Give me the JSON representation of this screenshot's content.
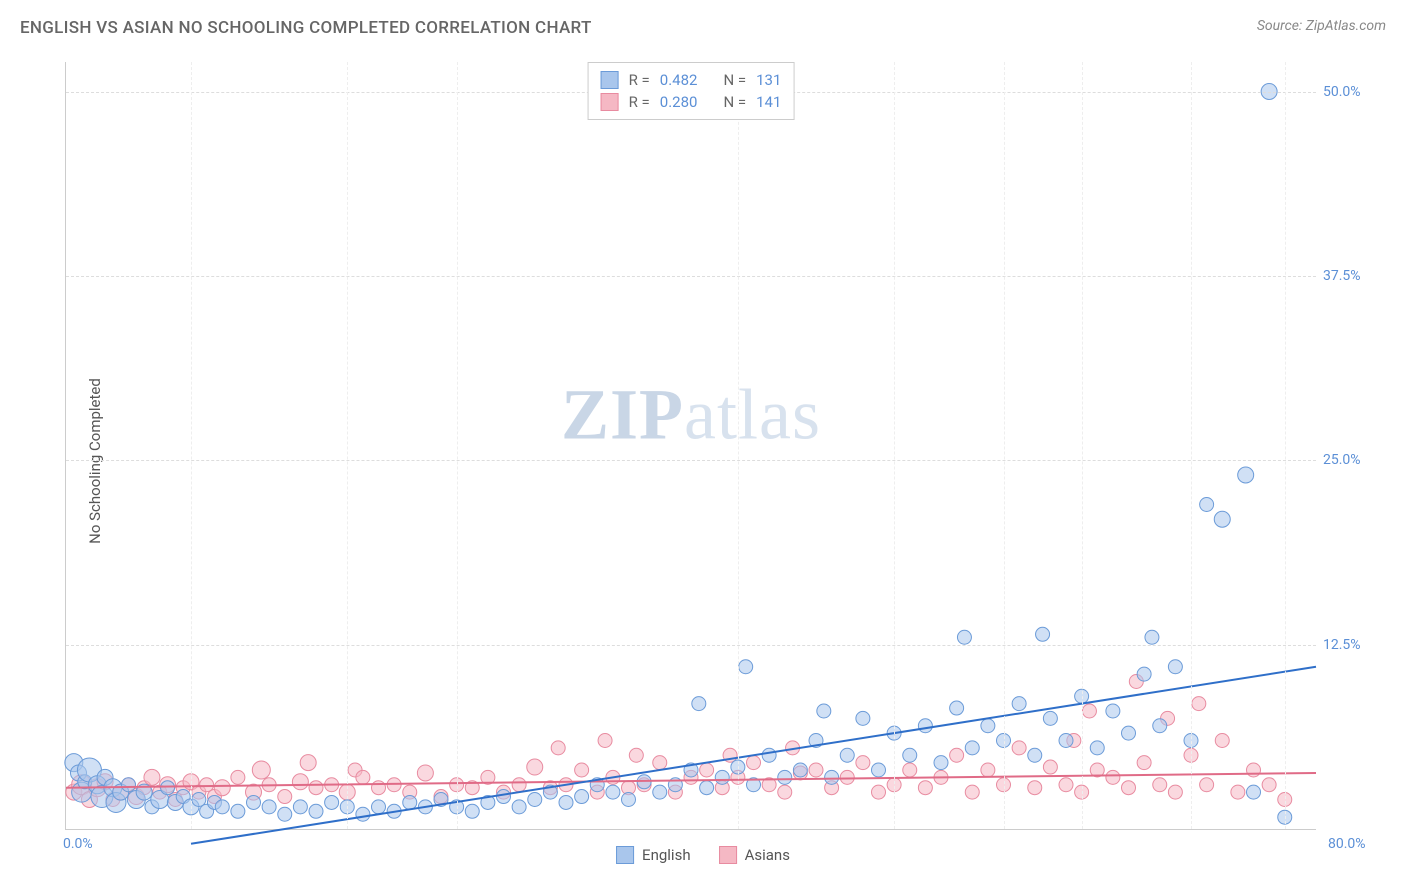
{
  "title": "ENGLISH VS ASIAN NO SCHOOLING COMPLETED CORRELATION CHART",
  "source_prefix": "Source: ",
  "source_link": "ZipAtlas.com",
  "ylabel": "No Schooling Completed",
  "watermark_bold": "ZIP",
  "watermark_light": "atlas",
  "chart": {
    "type": "scatter",
    "xlim": [
      0,
      80
    ],
    "ylim": [
      0,
      52
    ],
    "x_origin_label": "0.0%",
    "x_max_label": "80.0%",
    "y_ticks": [
      12.5,
      25.0,
      37.5,
      50.0
    ],
    "y_tick_labels": [
      "12.5%",
      "25.0%",
      "37.5%",
      "50.0%"
    ],
    "x_grid_positions": [
      8,
      18,
      25,
      43,
      53,
      60,
      65,
      72,
      78
    ],
    "background_color": "#ffffff",
    "grid_color": "#dddddd",
    "axis_color": "#cccccc",
    "tick_label_color": "#5b8fd6",
    "series": [
      {
        "name": "English",
        "label": "English",
        "fill": "#a9c6ec",
        "stroke": "#6b9bd8",
        "fill_opacity": 0.55,
        "marker_radius": 7,
        "trend": {
          "x1": 8,
          "y1": -1,
          "x2": 80,
          "y2": 11,
          "stroke": "#2f6fc9",
          "width": 2
        },
        "R_label": "R =",
        "R": "0.482",
        "N_label": "N =",
        "N": "131",
        "points": [
          [
            0.5,
            4.5,
            9
          ],
          [
            0.8,
            3.8,
            8
          ],
          [
            1,
            2.5,
            10
          ],
          [
            1.2,
            3.2,
            7
          ],
          [
            1.5,
            4,
            12
          ],
          [
            2,
            3,
            9
          ],
          [
            2.3,
            2.2,
            11
          ],
          [
            2.5,
            3.5,
            8
          ],
          [
            3,
            2.8,
            9
          ],
          [
            3.2,
            1.8,
            10
          ],
          [
            3.5,
            2.5,
            8
          ],
          [
            4,
            3,
            7
          ],
          [
            4.5,
            2,
            9
          ],
          [
            5,
            2.5,
            8
          ],
          [
            5.5,
            1.5,
            7
          ],
          [
            6,
            2,
            9
          ],
          [
            6.5,
            2.8,
            7
          ],
          [
            7,
            1.8,
            8
          ],
          [
            7.5,
            2.2,
            7
          ],
          [
            8,
            1.5,
            8
          ],
          [
            8.5,
            2,
            7
          ],
          [
            9,
            1.2,
            7
          ],
          [
            9.5,
            1.8,
            7
          ],
          [
            10,
            1.5,
            7
          ],
          [
            11,
            1.2,
            7
          ],
          [
            12,
            1.8,
            7
          ],
          [
            13,
            1.5,
            7
          ],
          [
            14,
            1,
            7
          ],
          [
            15,
            1.5,
            7
          ],
          [
            16,
            1.2,
            7
          ],
          [
            17,
            1.8,
            7
          ],
          [
            18,
            1.5,
            7
          ],
          [
            19,
            1,
            7
          ],
          [
            20,
            1.5,
            7
          ],
          [
            21,
            1.2,
            7
          ],
          [
            22,
            1.8,
            7
          ],
          [
            23,
            1.5,
            7
          ],
          [
            24,
            2,
            7
          ],
          [
            25,
            1.5,
            7
          ],
          [
            26,
            1.2,
            7
          ],
          [
            27,
            1.8,
            7
          ],
          [
            28,
            2.2,
            7
          ],
          [
            29,
            1.5,
            7
          ],
          [
            30,
            2,
            7
          ],
          [
            31,
            2.5,
            7
          ],
          [
            32,
            1.8,
            7
          ],
          [
            33,
            2.2,
            7
          ],
          [
            34,
            3,
            7
          ],
          [
            35,
            2.5,
            7
          ],
          [
            36,
            2,
            7
          ],
          [
            37,
            3.2,
            7
          ],
          [
            38,
            2.5,
            7
          ],
          [
            39,
            3,
            7
          ],
          [
            40,
            4,
            7
          ],
          [
            40.5,
            8.5,
            7
          ],
          [
            41,
            2.8,
            7
          ],
          [
            42,
            3.5,
            7
          ],
          [
            43,
            4.2,
            7
          ],
          [
            43.5,
            11,
            7
          ],
          [
            44,
            3,
            7
          ],
          [
            45,
            5,
            7
          ],
          [
            46,
            3.5,
            7
          ],
          [
            47,
            4,
            7
          ],
          [
            48,
            6,
            7
          ],
          [
            48.5,
            8,
            7
          ],
          [
            49,
            3.5,
            7
          ],
          [
            50,
            5,
            7
          ],
          [
            51,
            7.5,
            7
          ],
          [
            52,
            4,
            7
          ],
          [
            53,
            6.5,
            7
          ],
          [
            54,
            5,
            7
          ],
          [
            55,
            7,
            7
          ],
          [
            56,
            4.5,
            7
          ],
          [
            57,
            8.2,
            7
          ],
          [
            57.5,
            13,
            7
          ],
          [
            58,
            5.5,
            7
          ],
          [
            59,
            7,
            7
          ],
          [
            60,
            6,
            7
          ],
          [
            61,
            8.5,
            7
          ],
          [
            62,
            5,
            7
          ],
          [
            62.5,
            13.2,
            7
          ],
          [
            63,
            7.5,
            7
          ],
          [
            64,
            6,
            7
          ],
          [
            65,
            9,
            7
          ],
          [
            66,
            5.5,
            7
          ],
          [
            67,
            8,
            7
          ],
          [
            68,
            6.5,
            7
          ],
          [
            69,
            10.5,
            7
          ],
          [
            69.5,
            13,
            7
          ],
          [
            70,
            7,
            7
          ],
          [
            71,
            11,
            7
          ],
          [
            72,
            6,
            7
          ],
          [
            73,
            22,
            7
          ],
          [
            74,
            21,
            8
          ],
          [
            75.5,
            24,
            8
          ],
          [
            76,
            2.5,
            7
          ],
          [
            77,
            50,
            8
          ],
          [
            78,
            0.8,
            7
          ]
        ]
      },
      {
        "name": "Asians",
        "label": "Asians",
        "fill": "#f5b8c4",
        "stroke": "#e88ba0",
        "fill_opacity": 0.55,
        "marker_radius": 7,
        "trend": {
          "x1": 0,
          "y1": 2.8,
          "x2": 80,
          "y2": 3.8,
          "stroke": "#e06b87",
          "width": 2
        },
        "R_label": "R =",
        "R": "0.280",
        "N_label": "N =",
        "N": "141",
        "points": [
          [
            0.5,
            2.5,
            8
          ],
          [
            1,
            3,
            10
          ],
          [
            1.5,
            2,
            8
          ],
          [
            2,
            2.8,
            9
          ],
          [
            2.5,
            3.2,
            8
          ],
          [
            3,
            2,
            7
          ],
          [
            3.5,
            2.5,
            8
          ],
          [
            4,
            3,
            7
          ],
          [
            4.5,
            2.2,
            8
          ],
          [
            5,
            2.8,
            7
          ],
          [
            5.5,
            3.5,
            8
          ],
          [
            6,
            2.5,
            7
          ],
          [
            6.5,
            3,
            8
          ],
          [
            7,
            2,
            7
          ],
          [
            7.5,
            2.8,
            7
          ],
          [
            8,
            3.2,
            8
          ],
          [
            8.5,
            2.5,
            7
          ],
          [
            9,
            3,
            7
          ],
          [
            9.5,
            2.2,
            7
          ],
          [
            10,
            2.8,
            8
          ],
          [
            11,
            3.5,
            7
          ],
          [
            12,
            2.5,
            8
          ],
          [
            12.5,
            4,
            9
          ],
          [
            13,
            3,
            7
          ],
          [
            14,
            2.2,
            7
          ],
          [
            15,
            3.2,
            8
          ],
          [
            15.5,
            4.5,
            8
          ],
          [
            16,
            2.8,
            7
          ],
          [
            17,
            3,
            7
          ],
          [
            18,
            2.5,
            8
          ],
          [
            18.5,
            4,
            7
          ],
          [
            19,
            3.5,
            7
          ],
          [
            20,
            2.8,
            7
          ],
          [
            21,
            3,
            7
          ],
          [
            22,
            2.5,
            7
          ],
          [
            23,
            3.8,
            8
          ],
          [
            24,
            2.2,
            7
          ],
          [
            25,
            3,
            7
          ],
          [
            26,
            2.8,
            7
          ],
          [
            27,
            3.5,
            7
          ],
          [
            28,
            2.5,
            7
          ],
          [
            29,
            3,
            7
          ],
          [
            30,
            4.2,
            8
          ],
          [
            31,
            2.8,
            7
          ],
          [
            31.5,
            5.5,
            7
          ],
          [
            32,
            3,
            7
          ],
          [
            33,
            4,
            7
          ],
          [
            34,
            2.5,
            7
          ],
          [
            34.5,
            6,
            7
          ],
          [
            35,
            3.5,
            7
          ],
          [
            36,
            2.8,
            7
          ],
          [
            36.5,
            5,
            7
          ],
          [
            37,
            3,
            7
          ],
          [
            38,
            4.5,
            7
          ],
          [
            39,
            2.5,
            7
          ],
          [
            40,
            3.5,
            7
          ],
          [
            41,
            4,
            7
          ],
          [
            42,
            2.8,
            7
          ],
          [
            42.5,
            5,
            7
          ],
          [
            43,
            3.5,
            7
          ],
          [
            44,
            4.5,
            7
          ],
          [
            45,
            3,
            7
          ],
          [
            46,
            2.5,
            7
          ],
          [
            46.5,
            5.5,
            7
          ],
          [
            47,
            3.8,
            7
          ],
          [
            48,
            4,
            7
          ],
          [
            49,
            2.8,
            7
          ],
          [
            50,
            3.5,
            7
          ],
          [
            51,
            4.5,
            7
          ],
          [
            52,
            2.5,
            7
          ],
          [
            53,
            3,
            7
          ],
          [
            54,
            4,
            7
          ],
          [
            55,
            2.8,
            7
          ],
          [
            56,
            3.5,
            7
          ],
          [
            57,
            5,
            7
          ],
          [
            58,
            2.5,
            7
          ],
          [
            59,
            4,
            7
          ],
          [
            60,
            3,
            7
          ],
          [
            61,
            5.5,
            7
          ],
          [
            62,
            2.8,
            7
          ],
          [
            63,
            4.2,
            7
          ],
          [
            64,
            3,
            7
          ],
          [
            64.5,
            6,
            7
          ],
          [
            65,
            2.5,
            7
          ],
          [
            65.5,
            8,
            7
          ],
          [
            66,
            4,
            7
          ],
          [
            67,
            3.5,
            7
          ],
          [
            68,
            2.8,
            7
          ],
          [
            68.5,
            10,
            7
          ],
          [
            69,
            4.5,
            7
          ],
          [
            70,
            3,
            7
          ],
          [
            70.5,
            7.5,
            7
          ],
          [
            71,
            2.5,
            7
          ],
          [
            72,
            5,
            7
          ],
          [
            72.5,
            8.5,
            7
          ],
          [
            73,
            3,
            7
          ],
          [
            74,
            6,
            7
          ],
          [
            75,
            2.5,
            7
          ],
          [
            76,
            4,
            7
          ],
          [
            77,
            3,
            7
          ],
          [
            78,
            2,
            7
          ]
        ]
      }
    ]
  }
}
